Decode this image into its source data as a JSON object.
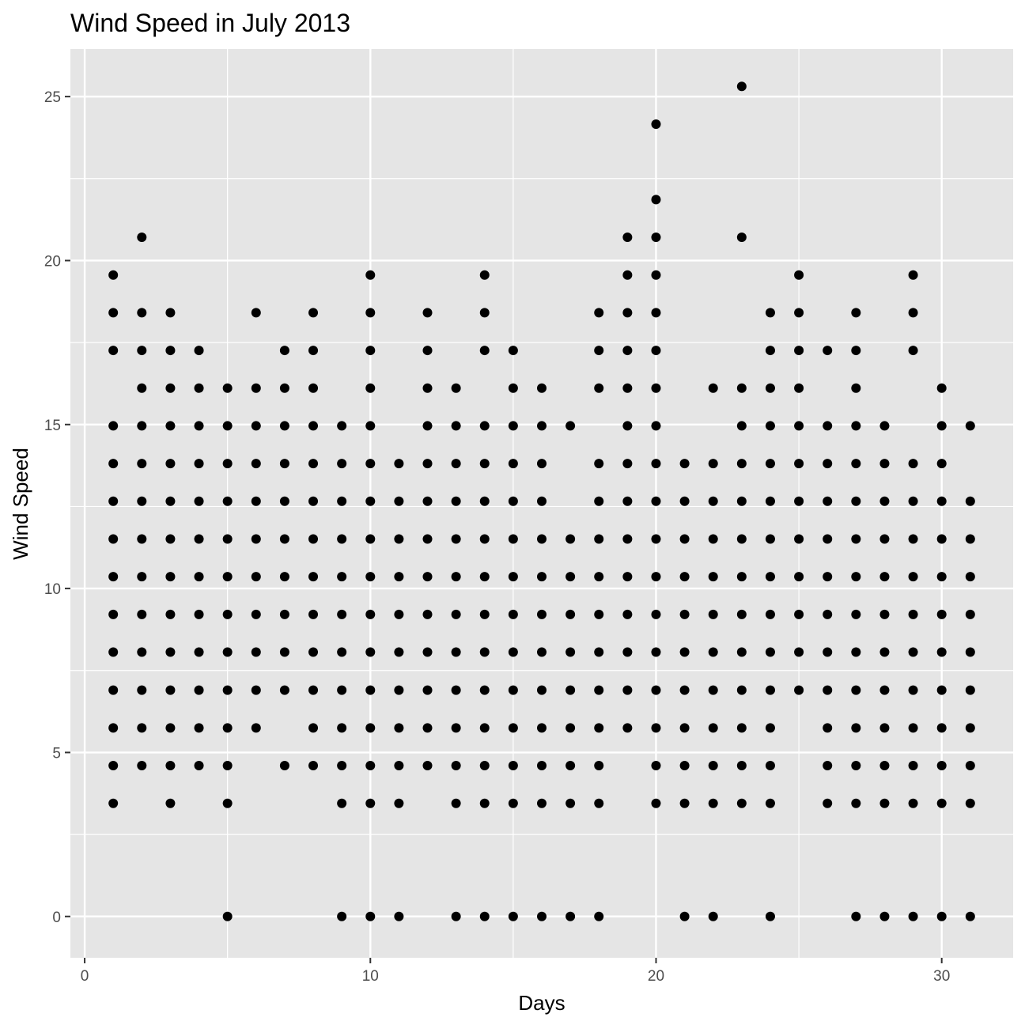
{
  "chart_data": {
    "type": "scatter",
    "title": "Wind Speed in July 2013",
    "xlabel": "Days",
    "ylabel": "Wind Speed",
    "xlim": [
      -0.5,
      32.5
    ],
    "ylim": [
      -1.26,
      26.45
    ],
    "x_ticks": [
      0,
      10,
      20,
      30
    ],
    "y_ticks": [
      0,
      5,
      10,
      15,
      20,
      25
    ],
    "grid": true,
    "legend": "none",
    "colors": {
      "panel": "#e5e5e5",
      "grid": "#ffffff",
      "point": "#000000",
      "tick": "#333333",
      "tick_label": "#4d4d4d"
    },
    "points": [
      [
        1,
        19.56
      ],
      [
        1,
        18.41
      ],
      [
        1,
        17.26
      ],
      [
        1,
        14.96
      ],
      [
        1,
        13.81
      ],
      [
        1,
        12.66
      ],
      [
        1,
        11.51
      ],
      [
        1,
        10.36
      ],
      [
        1,
        9.21
      ],
      [
        1,
        8.06
      ],
      [
        1,
        6.9
      ],
      [
        1,
        5.75
      ],
      [
        1,
        4.6
      ],
      [
        1,
        3.45
      ],
      [
        2,
        20.71
      ],
      [
        2,
        18.41
      ],
      [
        2,
        17.26
      ],
      [
        2,
        16.11
      ],
      [
        2,
        14.96
      ],
      [
        2,
        13.81
      ],
      [
        2,
        12.66
      ],
      [
        2,
        11.51
      ],
      [
        2,
        10.36
      ],
      [
        2,
        9.21
      ],
      [
        2,
        8.06
      ],
      [
        2,
        6.9
      ],
      [
        2,
        5.75
      ],
      [
        2,
        4.6
      ],
      [
        3,
        18.41
      ],
      [
        3,
        17.26
      ],
      [
        3,
        16.11
      ],
      [
        3,
        14.96
      ],
      [
        3,
        13.81
      ],
      [
        3,
        12.66
      ],
      [
        3,
        11.51
      ],
      [
        3,
        10.36
      ],
      [
        3,
        9.21
      ],
      [
        3,
        8.06
      ],
      [
        3,
        6.9
      ],
      [
        3,
        5.75
      ],
      [
        3,
        4.6
      ],
      [
        3,
        3.45
      ],
      [
        4,
        17.26
      ],
      [
        4,
        16.11
      ],
      [
        4,
        14.96
      ],
      [
        4,
        13.81
      ],
      [
        4,
        12.66
      ],
      [
        4,
        11.51
      ],
      [
        4,
        10.36
      ],
      [
        4,
        9.21
      ],
      [
        4,
        8.06
      ],
      [
        4,
        6.9
      ],
      [
        4,
        5.75
      ],
      [
        4,
        4.6
      ],
      [
        5,
        16.11
      ],
      [
        5,
        14.96
      ],
      [
        5,
        13.81
      ],
      [
        5,
        12.66
      ],
      [
        5,
        11.51
      ],
      [
        5,
        10.36
      ],
      [
        5,
        9.21
      ],
      [
        5,
        8.06
      ],
      [
        5,
        6.9
      ],
      [
        5,
        5.75
      ],
      [
        5,
        4.6
      ],
      [
        5,
        3.45
      ],
      [
        5,
        0
      ],
      [
        6,
        18.41
      ],
      [
        6,
        16.11
      ],
      [
        6,
        14.96
      ],
      [
        6,
        13.81
      ],
      [
        6,
        12.66
      ],
      [
        6,
        11.51
      ],
      [
        6,
        10.36
      ],
      [
        6,
        9.21
      ],
      [
        6,
        8.06
      ],
      [
        6,
        6.9
      ],
      [
        6,
        5.75
      ],
      [
        7,
        17.26
      ],
      [
        7,
        16.11
      ],
      [
        7,
        14.96
      ],
      [
        7,
        13.81
      ],
      [
        7,
        12.66
      ],
      [
        7,
        11.51
      ],
      [
        7,
        10.36
      ],
      [
        7,
        9.21
      ],
      [
        7,
        8.06
      ],
      [
        7,
        6.9
      ],
      [
        7,
        4.6
      ],
      [
        8,
        18.41
      ],
      [
        8,
        17.26
      ],
      [
        8,
        16.11
      ],
      [
        8,
        14.96
      ],
      [
        8,
        13.81
      ],
      [
        8,
        12.66
      ],
      [
        8,
        11.51
      ],
      [
        8,
        10.36
      ],
      [
        8,
        9.21
      ],
      [
        8,
        8.06
      ],
      [
        8,
        6.9
      ],
      [
        8,
        5.75
      ],
      [
        8,
        4.6
      ],
      [
        9,
        14.96
      ],
      [
        9,
        13.81
      ],
      [
        9,
        12.66
      ],
      [
        9,
        11.51
      ],
      [
        9,
        10.36
      ],
      [
        9,
        9.21
      ],
      [
        9,
        8.06
      ],
      [
        9,
        6.9
      ],
      [
        9,
        5.75
      ],
      [
        9,
        4.6
      ],
      [
        9,
        3.45
      ],
      [
        9,
        0
      ],
      [
        10,
        19.56
      ],
      [
        10,
        18.41
      ],
      [
        10,
        17.26
      ],
      [
        10,
        16.11
      ],
      [
        10,
        14.96
      ],
      [
        10,
        13.81
      ],
      [
        10,
        12.66
      ],
      [
        10,
        11.51
      ],
      [
        10,
        10.36
      ],
      [
        10,
        9.21
      ],
      [
        10,
        8.06
      ],
      [
        10,
        6.9
      ],
      [
        10,
        5.75
      ],
      [
        10,
        4.6
      ],
      [
        10,
        3.45
      ],
      [
        10,
        0
      ],
      [
        11,
        13.81
      ],
      [
        11,
        12.66
      ],
      [
        11,
        11.51
      ],
      [
        11,
        10.36
      ],
      [
        11,
        9.21
      ],
      [
        11,
        8.06
      ],
      [
        11,
        6.9
      ],
      [
        11,
        5.75
      ],
      [
        11,
        4.6
      ],
      [
        11,
        3.45
      ],
      [
        11,
        0
      ],
      [
        12,
        18.41
      ],
      [
        12,
        17.26
      ],
      [
        12,
        16.11
      ],
      [
        12,
        14.96
      ],
      [
        12,
        13.81
      ],
      [
        12,
        12.66
      ],
      [
        12,
        11.51
      ],
      [
        12,
        10.36
      ],
      [
        12,
        9.21
      ],
      [
        12,
        8.06
      ],
      [
        12,
        6.9
      ],
      [
        12,
        5.75
      ],
      [
        12,
        4.6
      ],
      [
        13,
        16.11
      ],
      [
        13,
        14.96
      ],
      [
        13,
        13.81
      ],
      [
        13,
        12.66
      ],
      [
        13,
        11.51
      ],
      [
        13,
        10.36
      ],
      [
        13,
        9.21
      ],
      [
        13,
        8.06
      ],
      [
        13,
        6.9
      ],
      [
        13,
        5.75
      ],
      [
        13,
        4.6
      ],
      [
        13,
        3.45
      ],
      [
        13,
        0
      ],
      [
        14,
        19.56
      ],
      [
        14,
        18.41
      ],
      [
        14,
        17.26
      ],
      [
        14,
        14.96
      ],
      [
        14,
        13.81
      ],
      [
        14,
        12.66
      ],
      [
        14,
        11.51
      ],
      [
        14,
        10.36
      ],
      [
        14,
        9.21
      ],
      [
        14,
        8.06
      ],
      [
        14,
        6.9
      ],
      [
        14,
        5.75
      ],
      [
        14,
        4.6
      ],
      [
        14,
        3.45
      ],
      [
        14,
        0
      ],
      [
        15,
        17.26
      ],
      [
        15,
        16.11
      ],
      [
        15,
        14.96
      ],
      [
        15,
        13.81
      ],
      [
        15,
        12.66
      ],
      [
        15,
        11.51
      ],
      [
        15,
        10.36
      ],
      [
        15,
        9.21
      ],
      [
        15,
        8.06
      ],
      [
        15,
        6.9
      ],
      [
        15,
        5.75
      ],
      [
        15,
        4.6
      ],
      [
        15,
        3.45
      ],
      [
        15,
        0
      ],
      [
        16,
        16.11
      ],
      [
        16,
        14.96
      ],
      [
        16,
        13.81
      ],
      [
        16,
        12.66
      ],
      [
        16,
        11.51
      ],
      [
        16,
        10.36
      ],
      [
        16,
        9.21
      ],
      [
        16,
        8.06
      ],
      [
        16,
        6.9
      ],
      [
        16,
        5.75
      ],
      [
        16,
        4.6
      ],
      [
        16,
        3.45
      ],
      [
        16,
        0
      ],
      [
        17,
        14.96
      ],
      [
        17,
        11.51
      ],
      [
        17,
        10.36
      ],
      [
        17,
        9.21
      ],
      [
        17,
        8.06
      ],
      [
        17,
        6.9
      ],
      [
        17,
        5.75
      ],
      [
        17,
        4.6
      ],
      [
        17,
        3.45
      ],
      [
        17,
        0
      ],
      [
        18,
        18.41
      ],
      [
        18,
        17.26
      ],
      [
        18,
        16.11
      ],
      [
        18,
        13.81
      ],
      [
        18,
        12.66
      ],
      [
        18,
        11.51
      ],
      [
        18,
        10.36
      ],
      [
        18,
        9.21
      ],
      [
        18,
        8.06
      ],
      [
        18,
        6.9
      ],
      [
        18,
        5.75
      ],
      [
        18,
        4.6
      ],
      [
        18,
        3.45
      ],
      [
        18,
        0
      ],
      [
        19,
        20.71
      ],
      [
        19,
        19.56
      ],
      [
        19,
        18.41
      ],
      [
        19,
        17.26
      ],
      [
        19,
        16.11
      ],
      [
        19,
        14.96
      ],
      [
        19,
        13.81
      ],
      [
        19,
        12.66
      ],
      [
        19,
        11.51
      ],
      [
        19,
        10.36
      ],
      [
        19,
        9.21
      ],
      [
        19,
        8.06
      ],
      [
        19,
        6.9
      ],
      [
        19,
        5.75
      ],
      [
        20,
        24.16
      ],
      [
        20,
        21.86
      ],
      [
        20,
        20.71
      ],
      [
        20,
        19.56
      ],
      [
        20,
        18.41
      ],
      [
        20,
        17.26
      ],
      [
        20,
        16.11
      ],
      [
        20,
        14.96
      ],
      [
        20,
        13.81
      ],
      [
        20,
        12.66
      ],
      [
        20,
        11.51
      ],
      [
        20,
        10.36
      ],
      [
        20,
        9.21
      ],
      [
        20,
        8.06
      ],
      [
        20,
        6.9
      ],
      [
        20,
        5.75
      ],
      [
        20,
        4.6
      ],
      [
        20,
        3.45
      ],
      [
        21,
        13.81
      ],
      [
        21,
        12.66
      ],
      [
        21,
        11.51
      ],
      [
        21,
        10.36
      ],
      [
        21,
        9.21
      ],
      [
        21,
        8.06
      ],
      [
        21,
        6.9
      ],
      [
        21,
        5.75
      ],
      [
        21,
        4.6
      ],
      [
        21,
        3.45
      ],
      [
        21,
        0
      ],
      [
        22,
        16.11
      ],
      [
        22,
        13.81
      ],
      [
        22,
        12.66
      ],
      [
        22,
        11.51
      ],
      [
        22,
        10.36
      ],
      [
        22,
        9.21
      ],
      [
        22,
        8.06
      ],
      [
        22,
        6.9
      ],
      [
        22,
        5.75
      ],
      [
        22,
        4.6
      ],
      [
        22,
        3.45
      ],
      [
        22,
        0
      ],
      [
        23,
        25.31
      ],
      [
        23,
        20.71
      ],
      [
        23,
        16.11
      ],
      [
        23,
        14.96
      ],
      [
        23,
        13.81
      ],
      [
        23,
        12.66
      ],
      [
        23,
        11.51
      ],
      [
        23,
        10.36
      ],
      [
        23,
        9.21
      ],
      [
        23,
        8.06
      ],
      [
        23,
        6.9
      ],
      [
        23,
        5.75
      ],
      [
        23,
        4.6
      ],
      [
        23,
        3.45
      ],
      [
        24,
        18.41
      ],
      [
        24,
        17.26
      ],
      [
        24,
        16.11
      ],
      [
        24,
        14.96
      ],
      [
        24,
        13.81
      ],
      [
        24,
        12.66
      ],
      [
        24,
        11.51
      ],
      [
        24,
        10.36
      ],
      [
        24,
        9.21
      ],
      [
        24,
        8.06
      ],
      [
        24,
        6.9
      ],
      [
        24,
        5.75
      ],
      [
        24,
        4.6
      ],
      [
        24,
        3.45
      ],
      [
        24,
        0
      ],
      [
        25,
        19.56
      ],
      [
        25,
        18.41
      ],
      [
        25,
        17.26
      ],
      [
        25,
        16.11
      ],
      [
        25,
        14.96
      ],
      [
        25,
        13.81
      ],
      [
        25,
        12.66
      ],
      [
        25,
        11.51
      ],
      [
        25,
        10.36
      ],
      [
        25,
        9.21
      ],
      [
        25,
        8.06
      ],
      [
        25,
        6.9
      ],
      [
        26,
        17.26
      ],
      [
        26,
        14.96
      ],
      [
        26,
        13.81
      ],
      [
        26,
        12.66
      ],
      [
        26,
        11.51
      ],
      [
        26,
        10.36
      ],
      [
        26,
        9.21
      ],
      [
        26,
        8.06
      ],
      [
        26,
        6.9
      ],
      [
        26,
        5.75
      ],
      [
        26,
        4.6
      ],
      [
        26,
        3.45
      ],
      [
        27,
        18.41
      ],
      [
        27,
        17.26
      ],
      [
        27,
        16.11
      ],
      [
        27,
        14.96
      ],
      [
        27,
        13.81
      ],
      [
        27,
        12.66
      ],
      [
        27,
        11.51
      ],
      [
        27,
        10.36
      ],
      [
        27,
        9.21
      ],
      [
        27,
        8.06
      ],
      [
        27,
        6.9
      ],
      [
        27,
        5.75
      ],
      [
        27,
        4.6
      ],
      [
        27,
        3.45
      ],
      [
        27,
        0
      ],
      [
        28,
        14.96
      ],
      [
        28,
        13.81
      ],
      [
        28,
        12.66
      ],
      [
        28,
        11.51
      ],
      [
        28,
        10.36
      ],
      [
        28,
        9.21
      ],
      [
        28,
        8.06
      ],
      [
        28,
        6.9
      ],
      [
        28,
        5.75
      ],
      [
        28,
        4.6
      ],
      [
        28,
        3.45
      ],
      [
        28,
        0
      ],
      [
        29,
        19.56
      ],
      [
        29,
        18.41
      ],
      [
        29,
        17.26
      ],
      [
        29,
        13.81
      ],
      [
        29,
        12.66
      ],
      [
        29,
        11.51
      ],
      [
        29,
        10.36
      ],
      [
        29,
        9.21
      ],
      [
        29,
        8.06
      ],
      [
        29,
        6.9
      ],
      [
        29,
        5.75
      ],
      [
        29,
        4.6
      ],
      [
        29,
        3.45
      ],
      [
        29,
        0
      ],
      [
        30,
        16.11
      ],
      [
        30,
        14.96
      ],
      [
        30,
        13.81
      ],
      [
        30,
        12.66
      ],
      [
        30,
        11.51
      ],
      [
        30,
        10.36
      ],
      [
        30,
        9.21
      ],
      [
        30,
        8.06
      ],
      [
        30,
        6.9
      ],
      [
        30,
        5.75
      ],
      [
        30,
        4.6
      ],
      [
        30,
        3.45
      ],
      [
        30,
        0
      ],
      [
        31,
        14.96
      ],
      [
        31,
        12.66
      ],
      [
        31,
        11.51
      ],
      [
        31,
        10.36
      ],
      [
        31,
        9.21
      ],
      [
        31,
        8.06
      ],
      [
        31,
        6.9
      ],
      [
        31,
        5.75
      ],
      [
        31,
        4.6
      ],
      [
        31,
        3.45
      ],
      [
        31,
        0
      ]
    ]
  }
}
